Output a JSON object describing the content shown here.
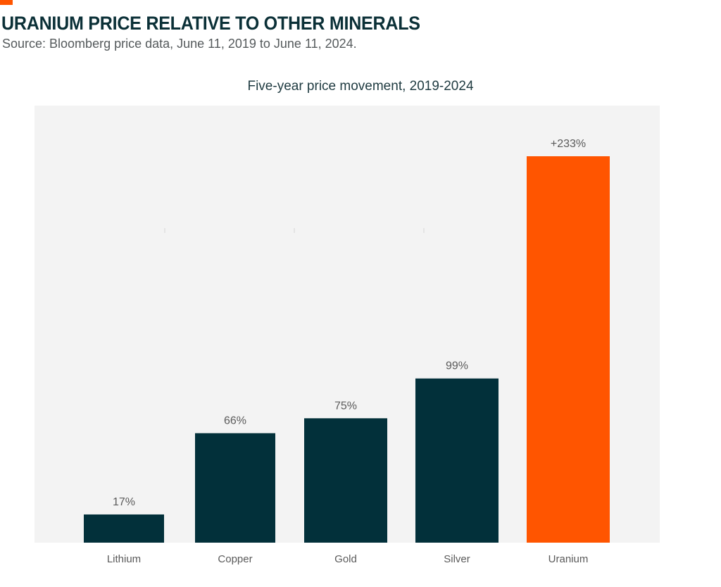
{
  "header": {
    "title": "URANIUM PRICE RELATIVE TO OTHER MINERALS",
    "source": "Source: Bloomberg price data, June 11, 2019 to June 11, 2024."
  },
  "colors": {
    "accent": "#ff5500",
    "bar_default": "#02303a",
    "bar_highlight": "#ff5500",
    "plot_background": "#f3f3f3",
    "label_text": "#5a5a5a"
  },
  "chart_data": {
    "type": "bar",
    "title": "Five-year price movement, 2019-2024",
    "xlabel": "",
    "ylabel": "",
    "ylim": [
      0,
      260
    ],
    "grid": false,
    "legend": "none",
    "categories": [
      "Lithium",
      "Copper",
      "Gold",
      "Silver",
      "Uranium"
    ],
    "values": [
      17,
      66,
      75,
      99,
      233
    ],
    "data_labels": [
      "17%",
      "66%",
      "75%",
      "99%",
      "+233%"
    ],
    "highlight": "Uranium"
  }
}
